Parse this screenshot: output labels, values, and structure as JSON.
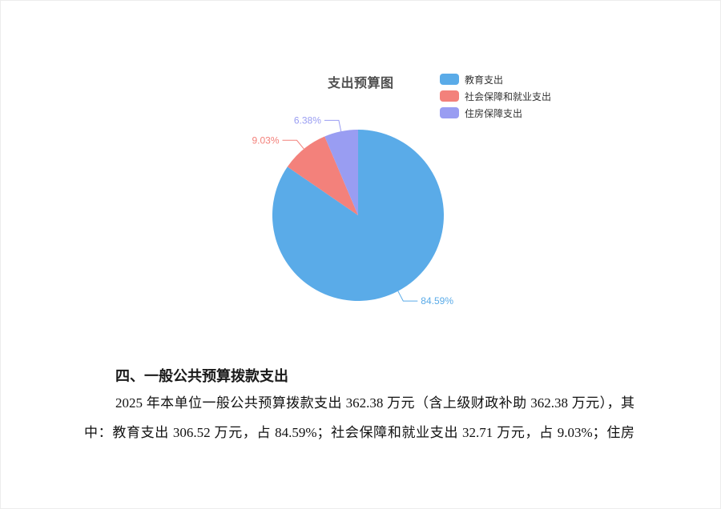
{
  "chart_data": {
    "type": "pie",
    "title": "支出预算图",
    "legend_position": "top-right-vertical",
    "label_format": "percent-outside",
    "series": [
      {
        "name": "教育支出",
        "value": 84.59,
        "label": "84.59%",
        "color": "#5aabe8"
      },
      {
        "name": "社会保障和就业支出",
        "value": 9.03,
        "label": "9.03%",
        "color": "#f3817b"
      },
      {
        "name": "住房保障支出",
        "value": 6.38,
        "label": "6.38%",
        "color": "#999df2"
      }
    ],
    "unit": "%",
    "total": 100
  },
  "document": {
    "heading": "四、一般公共预算拨款支出",
    "paragraph_line1": "2025 年本单位一般公共预算拨款支出 362.38 万元（含上级财政补助 362.38 万元），其",
    "paragraph_line2": "中：教育支出 306.52 万元，占 84.59%；社会保障和就业支出 32.71 万元，占 9.03%；住房"
  }
}
